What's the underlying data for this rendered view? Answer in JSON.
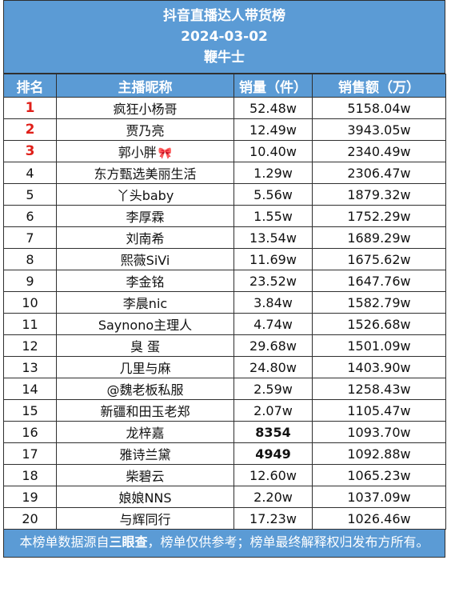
{
  "header": {
    "title": "抖音直播达人带货榜",
    "date": "2024-03-02",
    "brand": "鞭牛士"
  },
  "columns": [
    "排名",
    "主播昵称",
    "销量（件）",
    "销售额（万）"
  ],
  "rows": [
    {
      "rank": "1",
      "name": "疯狂小杨哥",
      "sales": "52.48w",
      "revenue": "5158.04w"
    },
    {
      "rank": "2",
      "name": "贾乃亮",
      "sales": "12.49w",
      "revenue": "3943.05w"
    },
    {
      "rank": "3",
      "name": "郭小胖",
      "sales": "10.40w",
      "revenue": "2340.49w",
      "emoji": "🎀"
    },
    {
      "rank": "4",
      "name": "东方甄选美丽生活",
      "sales": "1.29w",
      "revenue": "2306.47w"
    },
    {
      "rank": "5",
      "name": "丫头baby",
      "sales": "5.56w",
      "revenue": "1879.32w"
    },
    {
      "rank": "6",
      "name": "李厚霖",
      "sales": "1.55w",
      "revenue": "1752.29w"
    },
    {
      "rank": "7",
      "name": "刘南希",
      "sales": "13.54w",
      "revenue": "1689.29w"
    },
    {
      "rank": "8",
      "name": "熙薇SiVi",
      "sales": "11.69w",
      "revenue": "1675.62w"
    },
    {
      "rank": "9",
      "name": "李金铭",
      "sales": "23.52w",
      "revenue": "1647.76w"
    },
    {
      "rank": "10",
      "name": "李晨nic",
      "sales": "3.84w",
      "revenue": "1582.79w"
    },
    {
      "rank": "11",
      "name": "Saynono主理人",
      "sales": "4.74w",
      "revenue": "1526.68w"
    },
    {
      "rank": "12",
      "name": "臭 蛋",
      "sales": "29.68w",
      "revenue": "1501.09w"
    },
    {
      "rank": "13",
      "name": "几里与麻",
      "sales": "24.80w",
      "revenue": "1403.90w"
    },
    {
      "rank": "14",
      "name": "@魏老板私服",
      "sales": "2.59w",
      "revenue": "1258.43w"
    },
    {
      "rank": "15",
      "name": "新疆和田玉老郑",
      "sales": "2.07w",
      "revenue": "1105.47w"
    },
    {
      "rank": "16",
      "name": "龙梓嘉",
      "sales": "8354",
      "revenue": "1093.70w"
    },
    {
      "rank": "17",
      "name": "雅诗兰黛",
      "sales": "4949",
      "revenue": "1092.88w"
    },
    {
      "rank": "18",
      "name": "柴碧云",
      "sales": "12.60w",
      "revenue": "1065.23w"
    },
    {
      "rank": "19",
      "name": "娘娘NNS",
      "sales": "2.20w",
      "revenue": "1037.09w"
    },
    {
      "rank": "20",
      "name": "与辉同行",
      "sales": "17.23w",
      "revenue": "1026.46w"
    }
  ],
  "footer": {
    "prefix": "本榜单数据源自",
    "source": "三眼查",
    "suffix": "，榜单仅供参考；榜单最终解释权归发布方所有。"
  },
  "colors": {
    "header_bg": "#5b9bd5",
    "top3_rank": "#e0201a"
  }
}
